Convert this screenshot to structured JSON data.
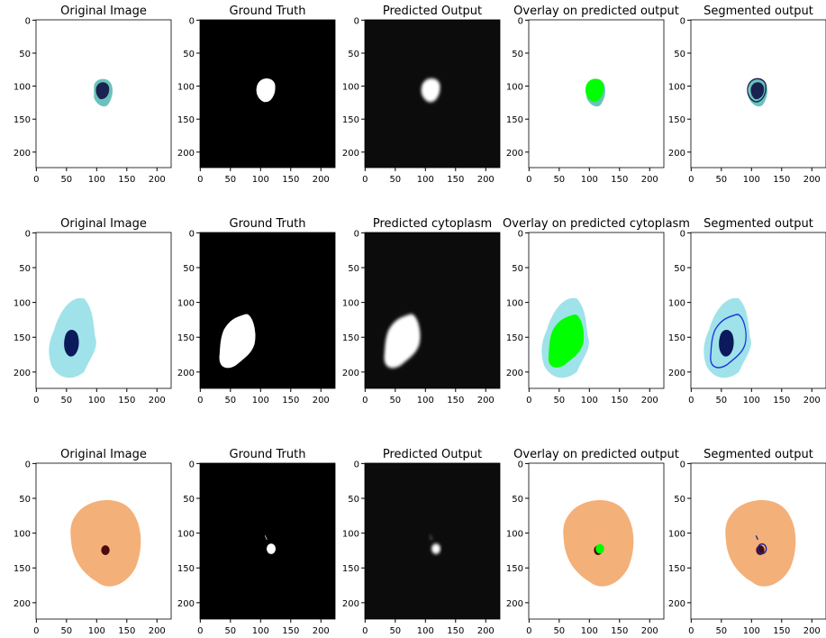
{
  "xlim": [
    -0.5,
    223.5
  ],
  "ylim": [
    223.5,
    -0.5
  ],
  "xticks": [
    0,
    50,
    100,
    150,
    200
  ],
  "yticks": [
    0,
    50,
    100,
    150,
    200
  ],
  "rows": [
    {
      "titles": [
        "Original Image",
        "Ground Truth",
        "Predicted Output",
        "Overlay on predicted output",
        "Segmented output"
      ]
    },
    {
      "titles": [
        "Original Image",
        "Ground Truth",
        "Predicted cytoplasm",
        "Overlay on predicted cytoplasm",
        "Segmented output"
      ]
    },
    {
      "titles": [
        "Original Image",
        "Ground Truth",
        "Predicted Output",
        "Overlay on predicted output",
        "Segmented output"
      ]
    }
  ]
}
